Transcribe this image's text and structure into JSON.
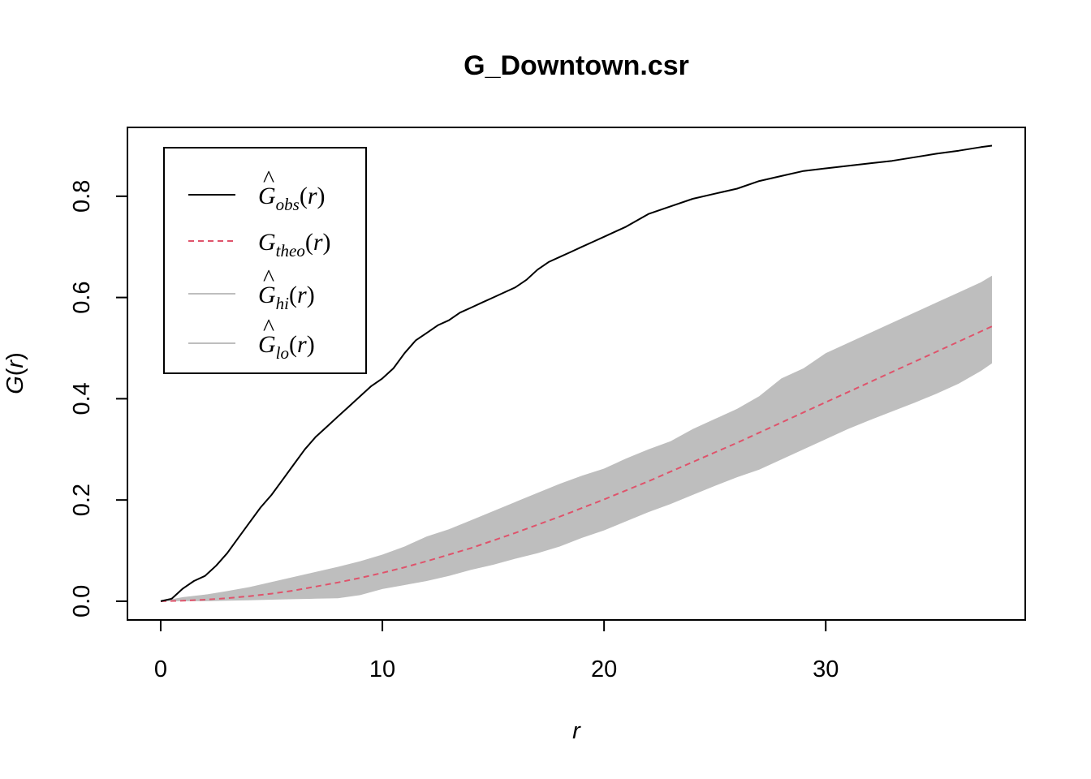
{
  "chart_data": {
    "type": "line",
    "title": "G_Downtown.csr",
    "xlabel": "r",
    "ylabel": "G(r)",
    "xlim": [
      -1.5,
      39.0
    ],
    "ylim": [
      -0.037,
      0.936
    ],
    "x_ticks": [
      0,
      10,
      20,
      30
    ],
    "x_tick_labels": [
      "0",
      "10",
      "20",
      "30"
    ],
    "y_ticks": [
      0.0,
      0.2,
      0.4,
      0.6,
      0.8
    ],
    "y_tick_labels": [
      "0.0",
      "0.2",
      "0.4",
      "0.6",
      "0.8"
    ],
    "grid": false,
    "legend_position": "top-left",
    "colors": {
      "obs": "#000000",
      "theo": "#DF536B",
      "envelope": "#BEBEBE"
    },
    "legend": [
      {
        "key": "obs",
        "base": "G",
        "hat": true,
        "sub": "obs",
        "arg": "(r)"
      },
      {
        "key": "theo",
        "base": "G",
        "hat": false,
        "sub": "theo",
        "arg": "(r)"
      },
      {
        "key": "hi",
        "base": "G",
        "hat": true,
        "sub": "hi",
        "arg": "(r)"
      },
      {
        "key": "lo",
        "base": "G",
        "hat": true,
        "sub": "lo",
        "arg": "(r)"
      }
    ],
    "series": [
      {
        "key": "obs",
        "style": "solid",
        "x": [
          0,
          0.5,
          1,
          1.5,
          2,
          2.5,
          3,
          3.5,
          4,
          4.5,
          5,
          5.5,
          6,
          6.5,
          7,
          7.5,
          8,
          8.5,
          9,
          9.5,
          10,
          10.5,
          11,
          11.5,
          12,
          12.5,
          13,
          13.5,
          14,
          14.5,
          15,
          15.5,
          16,
          16.5,
          17,
          17.5,
          18,
          18.5,
          19,
          19.5,
          20,
          21,
          22,
          23,
          24,
          25,
          26,
          27,
          28,
          29,
          30,
          31,
          32,
          33,
          34,
          35,
          36,
          37,
          37.5
        ],
        "y": [
          0,
          0.005,
          0.025,
          0.04,
          0.05,
          0.07,
          0.095,
          0.125,
          0.155,
          0.185,
          0.21,
          0.24,
          0.27,
          0.3,
          0.325,
          0.345,
          0.365,
          0.385,
          0.405,
          0.425,
          0.44,
          0.46,
          0.49,
          0.515,
          0.53,
          0.545,
          0.555,
          0.57,
          0.58,
          0.59,
          0.6,
          0.61,
          0.62,
          0.635,
          0.655,
          0.67,
          0.68,
          0.69,
          0.7,
          0.71,
          0.72,
          0.74,
          0.765,
          0.78,
          0.795,
          0.805,
          0.815,
          0.83,
          0.84,
          0.85,
          0.855,
          0.86,
          0.865,
          0.87,
          0.877,
          0.884,
          0.89,
          0.897,
          0.9
        ]
      },
      {
        "key": "theo",
        "style": "dashed",
        "x": [
          0,
          1,
          2,
          3,
          4,
          5,
          6,
          7,
          8,
          9,
          10,
          11,
          12,
          13,
          14,
          15,
          16,
          17,
          18,
          19,
          20,
          21,
          22,
          23,
          24,
          25,
          26,
          27,
          28,
          29,
          30,
          31,
          32,
          33,
          34,
          35,
          36,
          37,
          37.5
        ],
        "y": [
          0,
          0.001,
          0.003,
          0.006,
          0.01,
          0.015,
          0.021,
          0.029,
          0.037,
          0.046,
          0.056,
          0.067,
          0.079,
          0.092,
          0.105,
          0.12,
          0.135,
          0.151,
          0.167,
          0.184,
          0.201,
          0.219,
          0.237,
          0.256,
          0.275,
          0.294,
          0.313,
          0.333,
          0.353,
          0.373,
          0.393,
          0.413,
          0.433,
          0.453,
          0.473,
          0.493,
          0.513,
          0.533,
          0.543
        ]
      },
      {
        "key": "hi",
        "style": "envelope-upper",
        "x": [
          0,
          1,
          2,
          3,
          4,
          5,
          6,
          7,
          8,
          9,
          10,
          11,
          12,
          13,
          14,
          15,
          16,
          17,
          18,
          19,
          20,
          21,
          22,
          23,
          24,
          25,
          26,
          27,
          28,
          29,
          30,
          31,
          32,
          33,
          34,
          35,
          36,
          37,
          37.5
        ],
        "y": [
          0,
          0.008,
          0.013,
          0.02,
          0.028,
          0.038,
          0.048,
          0.058,
          0.068,
          0.079,
          0.092,
          0.108,
          0.128,
          0.142,
          0.16,
          0.178,
          0.196,
          0.214,
          0.232,
          0.248,
          0.262,
          0.282,
          0.3,
          0.316,
          0.34,
          0.36,
          0.38,
          0.405,
          0.44,
          0.46,
          0.49,
          0.51,
          0.53,
          0.55,
          0.57,
          0.59,
          0.61,
          0.63,
          0.643
        ]
      },
      {
        "key": "lo",
        "style": "envelope-lower",
        "x": [
          0,
          1,
          2,
          3,
          4,
          5,
          6,
          7,
          8,
          9,
          10,
          11,
          12,
          13,
          14,
          15,
          16,
          17,
          18,
          19,
          20,
          21,
          22,
          23,
          24,
          25,
          26,
          27,
          28,
          29,
          30,
          31,
          32,
          33,
          34,
          35,
          36,
          37,
          37.5
        ],
        "y": [
          0,
          0,
          0,
          0.001,
          0.002,
          0.003,
          0.004,
          0.005,
          0.006,
          0.012,
          0.024,
          0.032,
          0.04,
          0.05,
          0.062,
          0.072,
          0.084,
          0.095,
          0.108,
          0.125,
          0.14,
          0.158,
          0.176,
          0.192,
          0.21,
          0.228,
          0.245,
          0.26,
          0.28,
          0.3,
          0.32,
          0.34,
          0.358,
          0.375,
          0.392,
          0.41,
          0.43,
          0.455,
          0.47
        ]
      }
    ]
  }
}
